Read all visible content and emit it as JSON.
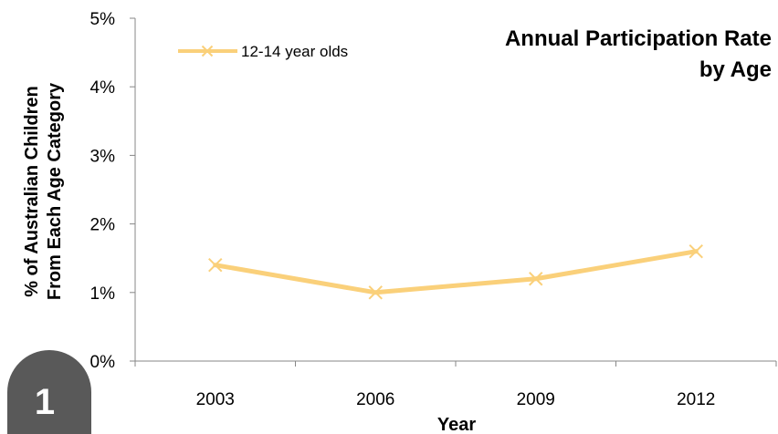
{
  "chart_data": {
    "type": "line",
    "title_lines": [
      "Annual Participation Rate",
      "by Age"
    ],
    "xlabel": "Year",
    "ylabel_lines": [
      "% of Australian Children",
      "From  Each Age Category"
    ],
    "categories": [
      "2003",
      "2006",
      "2009",
      "2012"
    ],
    "series": [
      {
        "name": "12-14 year olds",
        "values": [
          1.4,
          1.0,
          1.2,
          1.6
        ],
        "color": "#fad07a",
        "marker": "x"
      }
    ],
    "ylim": [
      0,
      5
    ],
    "yticks": [
      0,
      1,
      2,
      3,
      4,
      5
    ],
    "ytick_labels": [
      "0%",
      "1%",
      "2%",
      "3%",
      "4%",
      "5%"
    ],
    "grid": false,
    "legend_position": "top-left"
  },
  "badge": {
    "text": "1",
    "color": "#595959"
  },
  "colors": {
    "axis": "#878787",
    "series": "#fad07a"
  }
}
